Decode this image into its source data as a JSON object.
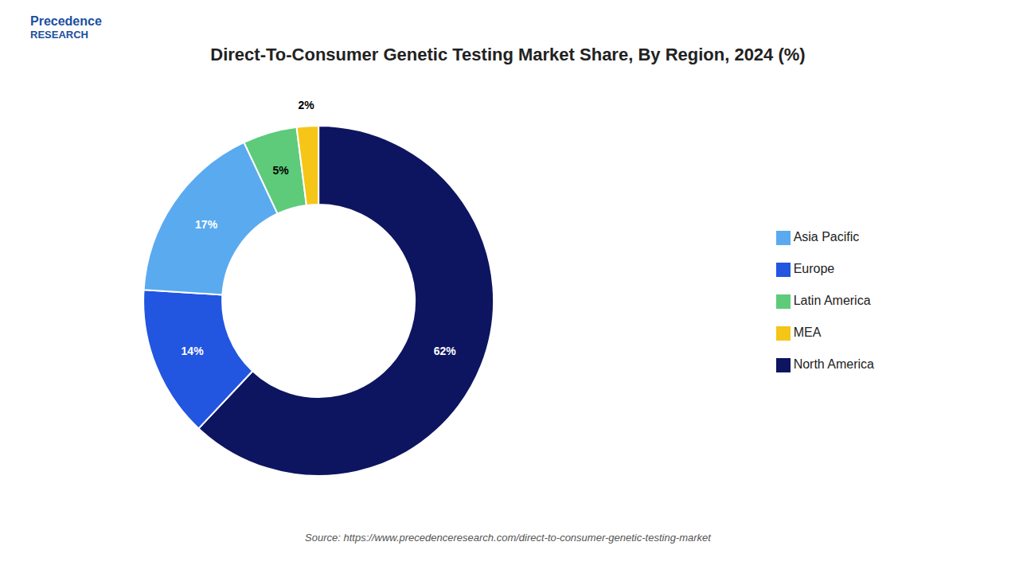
{
  "chart_data": {
    "type": "pie",
    "title": "Direct-To-Consumer Genetic Testing Market Share, By Region, 2024 (%)",
    "categories": [
      "North America",
      "Europe",
      "Asia Pacific",
      "Latin America",
      "MEA"
    ],
    "values": [
      62,
      14,
      17,
      5,
      2
    ],
    "value_labels": [
      "62%",
      "14%",
      "17%",
      "5%",
      "2%"
    ],
    "colors": [
      "#0d1560",
      "#2255e0",
      "#5aaaf0",
      "#5dcb7a",
      "#f5c518"
    ],
    "data_labels": true,
    "legend": "right",
    "annotations": [
      "Source: https://www.precedenceresearch.com/direct-to-consumer-genetic-testing-market",
      "Precedence",
      "RESEARCH"
    ]
  }
}
